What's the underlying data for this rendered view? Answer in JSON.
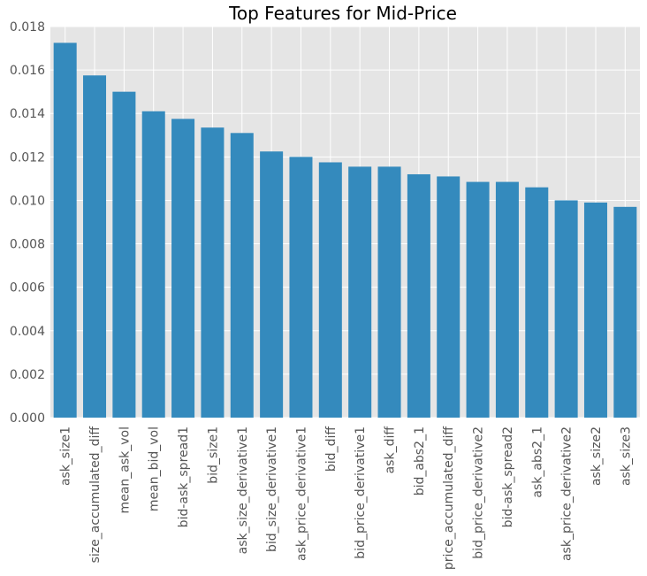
{
  "chart_data": {
    "type": "bar",
    "title": "Top Features for Mid-Price",
    "xlabel": "",
    "ylabel": "",
    "ylim": [
      0,
      0.018
    ],
    "yticks": [
      "0.000",
      "0.002",
      "0.004",
      "0.006",
      "0.008",
      "0.010",
      "0.012",
      "0.014",
      "0.016",
      "0.018"
    ],
    "grid": true,
    "bar_color": "#348abd",
    "background_color": "#e5e5e5",
    "grid_color": "#ffffff",
    "categories": [
      "ask_size1",
      "size_accumulated_diff",
      "mean_ask_vol",
      "mean_bid_vol",
      "bid-ask_spread1",
      "bid_size1",
      "ask_size_derivative1",
      "bid_size_derivative1",
      "ask_price_derivative1",
      "bid_diff",
      "bid_price_derivative1",
      "ask_diff",
      "bid_abs2_1",
      "price_accumulated_diff",
      "bid_price_derivative2",
      "bid-ask_spread2",
      "ask_abs2_1",
      "ask_price_derivative2",
      "ask_size2",
      "ask_size3"
    ],
    "values": [
      0.01725,
      0.01575,
      0.015,
      0.0141,
      0.01375,
      0.01335,
      0.0131,
      0.01225,
      0.012,
      0.01175,
      0.01155,
      0.01155,
      0.0112,
      0.0111,
      0.01085,
      0.01085,
      0.0106,
      0.01,
      0.0099,
      0.0097
    ]
  }
}
